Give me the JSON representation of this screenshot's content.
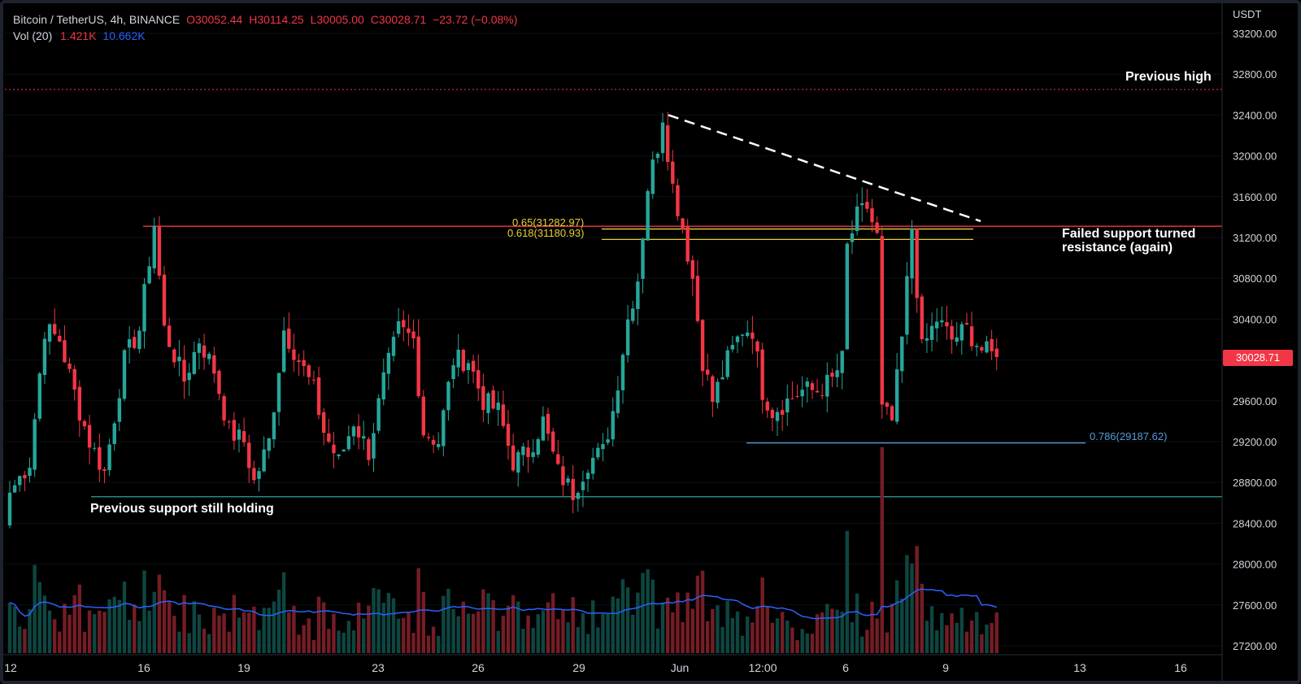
{
  "legend": {
    "symbol": "Bitcoin / TetherUS, 4h, BINANCE",
    "open": "O30052.44",
    "high": "H30114.25",
    "low": "L30005.00",
    "close": "C30028.71",
    "change": "−23.72 (−0.08%)",
    "vol_label": "Vol (20)",
    "vol_value": "1.421K",
    "vol_ma": "10.662K"
  },
  "price_axis": {
    "currency": "USDT",
    "current_price": "30028.71"
  },
  "annotations": {
    "previous_high": "Previous high",
    "failed_support_line1": "Failed support turned",
    "failed_support_line2": "resistance (again)",
    "previous_support": "Previous support still holding",
    "fib_065": "0.65(31282.97)",
    "fib_0618": "0.618(31180.93)",
    "fib_0786": "0.786(29187.62)"
  },
  "colors": {
    "background": "#000000",
    "up": "#26a69a",
    "down": "#f23645",
    "volume_ma": "#2962ff",
    "fib_yellow": "#e6d233",
    "fib_blue": "#5b9bd5",
    "support": "#26a69a",
    "resistance": "#f23645"
  },
  "chart_data": {
    "type": "candlestick",
    "symbol": "Bitcoin / TetherUS",
    "interval": "4h",
    "exchange": "BINANCE",
    "ylim": [
      27050,
      33400
    ],
    "y_ticks": [
      27200,
      27600,
      28000,
      28400,
      28800,
      29200,
      29600,
      30000,
      30400,
      30800,
      31200,
      31600,
      32000,
      32400,
      32800,
      33200
    ],
    "x_ticks": [
      "12",
      "16",
      "19",
      "23",
      "26",
      "29",
      "Jun",
      "12:00",
      "6",
      "9",
      "13",
      "16"
    ],
    "levels": [
      {
        "label": "Previous high",
        "price": 32650,
        "style": "dotted",
        "color": "#f23645"
      },
      {
        "label": "Failed support turned resistance (again)",
        "price": 31310,
        "style": "solid",
        "color": "#f23645"
      },
      {
        "label": "0.65(31282.97)",
        "price": 31282.97,
        "style": "solid",
        "color": "#e6d233"
      },
      {
        "label": "0.618(31180.93)",
        "price": 31180.93,
        "style": "solid",
        "color": "#e6d233"
      },
      {
        "label": "0.786(29187.62)",
        "price": 29187.62,
        "style": "solid",
        "color": "#5b9bd5"
      },
      {
        "label": "Previous support still holding",
        "price": 28660,
        "style": "solid",
        "color": "#26a69a"
      }
    ],
    "trendline": {
      "from_price": 32400,
      "to_price": 31360,
      "style": "dashed",
      "color": "#ffffff"
    },
    "path_keypoints": [
      [
        0,
        28700
      ],
      [
        4,
        29000
      ],
      [
        7,
        30300
      ],
      [
        10,
        30200
      ],
      [
        14,
        29500
      ],
      [
        16,
        29200
      ],
      [
        19,
        28900
      ],
      [
        23,
        30000
      ],
      [
        26,
        30300
      ],
      [
        29,
        31330
      ],
      [
        31,
        30300
      ],
      [
        35,
        29800
      ],
      [
        38,
        30200
      ],
      [
        41,
        29900
      ],
      [
        44,
        29300
      ],
      [
        47,
        29200
      ],
      [
        49,
        28800
      ],
      [
        52,
        29200
      ],
      [
        55,
        30300
      ],
      [
        58,
        30000
      ],
      [
        61,
        29700
      ],
      [
        63,
        29300
      ],
      [
        66,
        29000
      ],
      [
        69,
        29400
      ],
      [
        72,
        29100
      ],
      [
        75,
        29800
      ],
      [
        78,
        30300
      ],
      [
        81,
        30200
      ],
      [
        83,
        29300
      ],
      [
        86,
        29200
      ],
      [
        89,
        30000
      ],
      [
        92,
        30000
      ],
      [
        95,
        29600
      ],
      [
        98,
        29500
      ],
      [
        101,
        29000
      ],
      [
        104,
        29100
      ],
      [
        107,
        29400
      ],
      [
        110,
        28900
      ],
      [
        113,
        28700
      ],
      [
        116,
        29000
      ],
      [
        119,
        29100
      ],
      [
        121,
        29500
      ],
      [
        124,
        30400
      ],
      [
        126,
        30800
      ],
      [
        128,
        31700
      ],
      [
        130,
        32100
      ],
      [
        131,
        32400
      ],
      [
        133,
        31700
      ],
      [
        135,
        31300
      ],
      [
        137,
        30800
      ],
      [
        139,
        30000
      ],
      [
        141,
        29600
      ],
      [
        144,
        30000
      ],
      [
        147,
        30300
      ],
      [
        149,
        30300
      ],
      [
        151,
        29700
      ],
      [
        153,
        29500
      ],
      [
        156,
        29600
      ],
      [
        159,
        29700
      ],
      [
        162,
        29700
      ],
      [
        165,
        29800
      ],
      [
        167,
        30000
      ],
      [
        168,
        31100
      ],
      [
        170,
        31400
      ],
      [
        172,
        31500
      ],
      [
        174,
        31200
      ],
      [
        175,
        29500
      ],
      [
        177,
        29400
      ],
      [
        179,
        30200
      ],
      [
        181,
        31300
      ],
      [
        183,
        30100
      ],
      [
        186,
        30400
      ],
      [
        189,
        30200
      ],
      [
        192,
        30300
      ],
      [
        195,
        30100
      ],
      [
        197,
        30050
      ],
      [
        198,
        30028.71
      ]
    ]
  }
}
